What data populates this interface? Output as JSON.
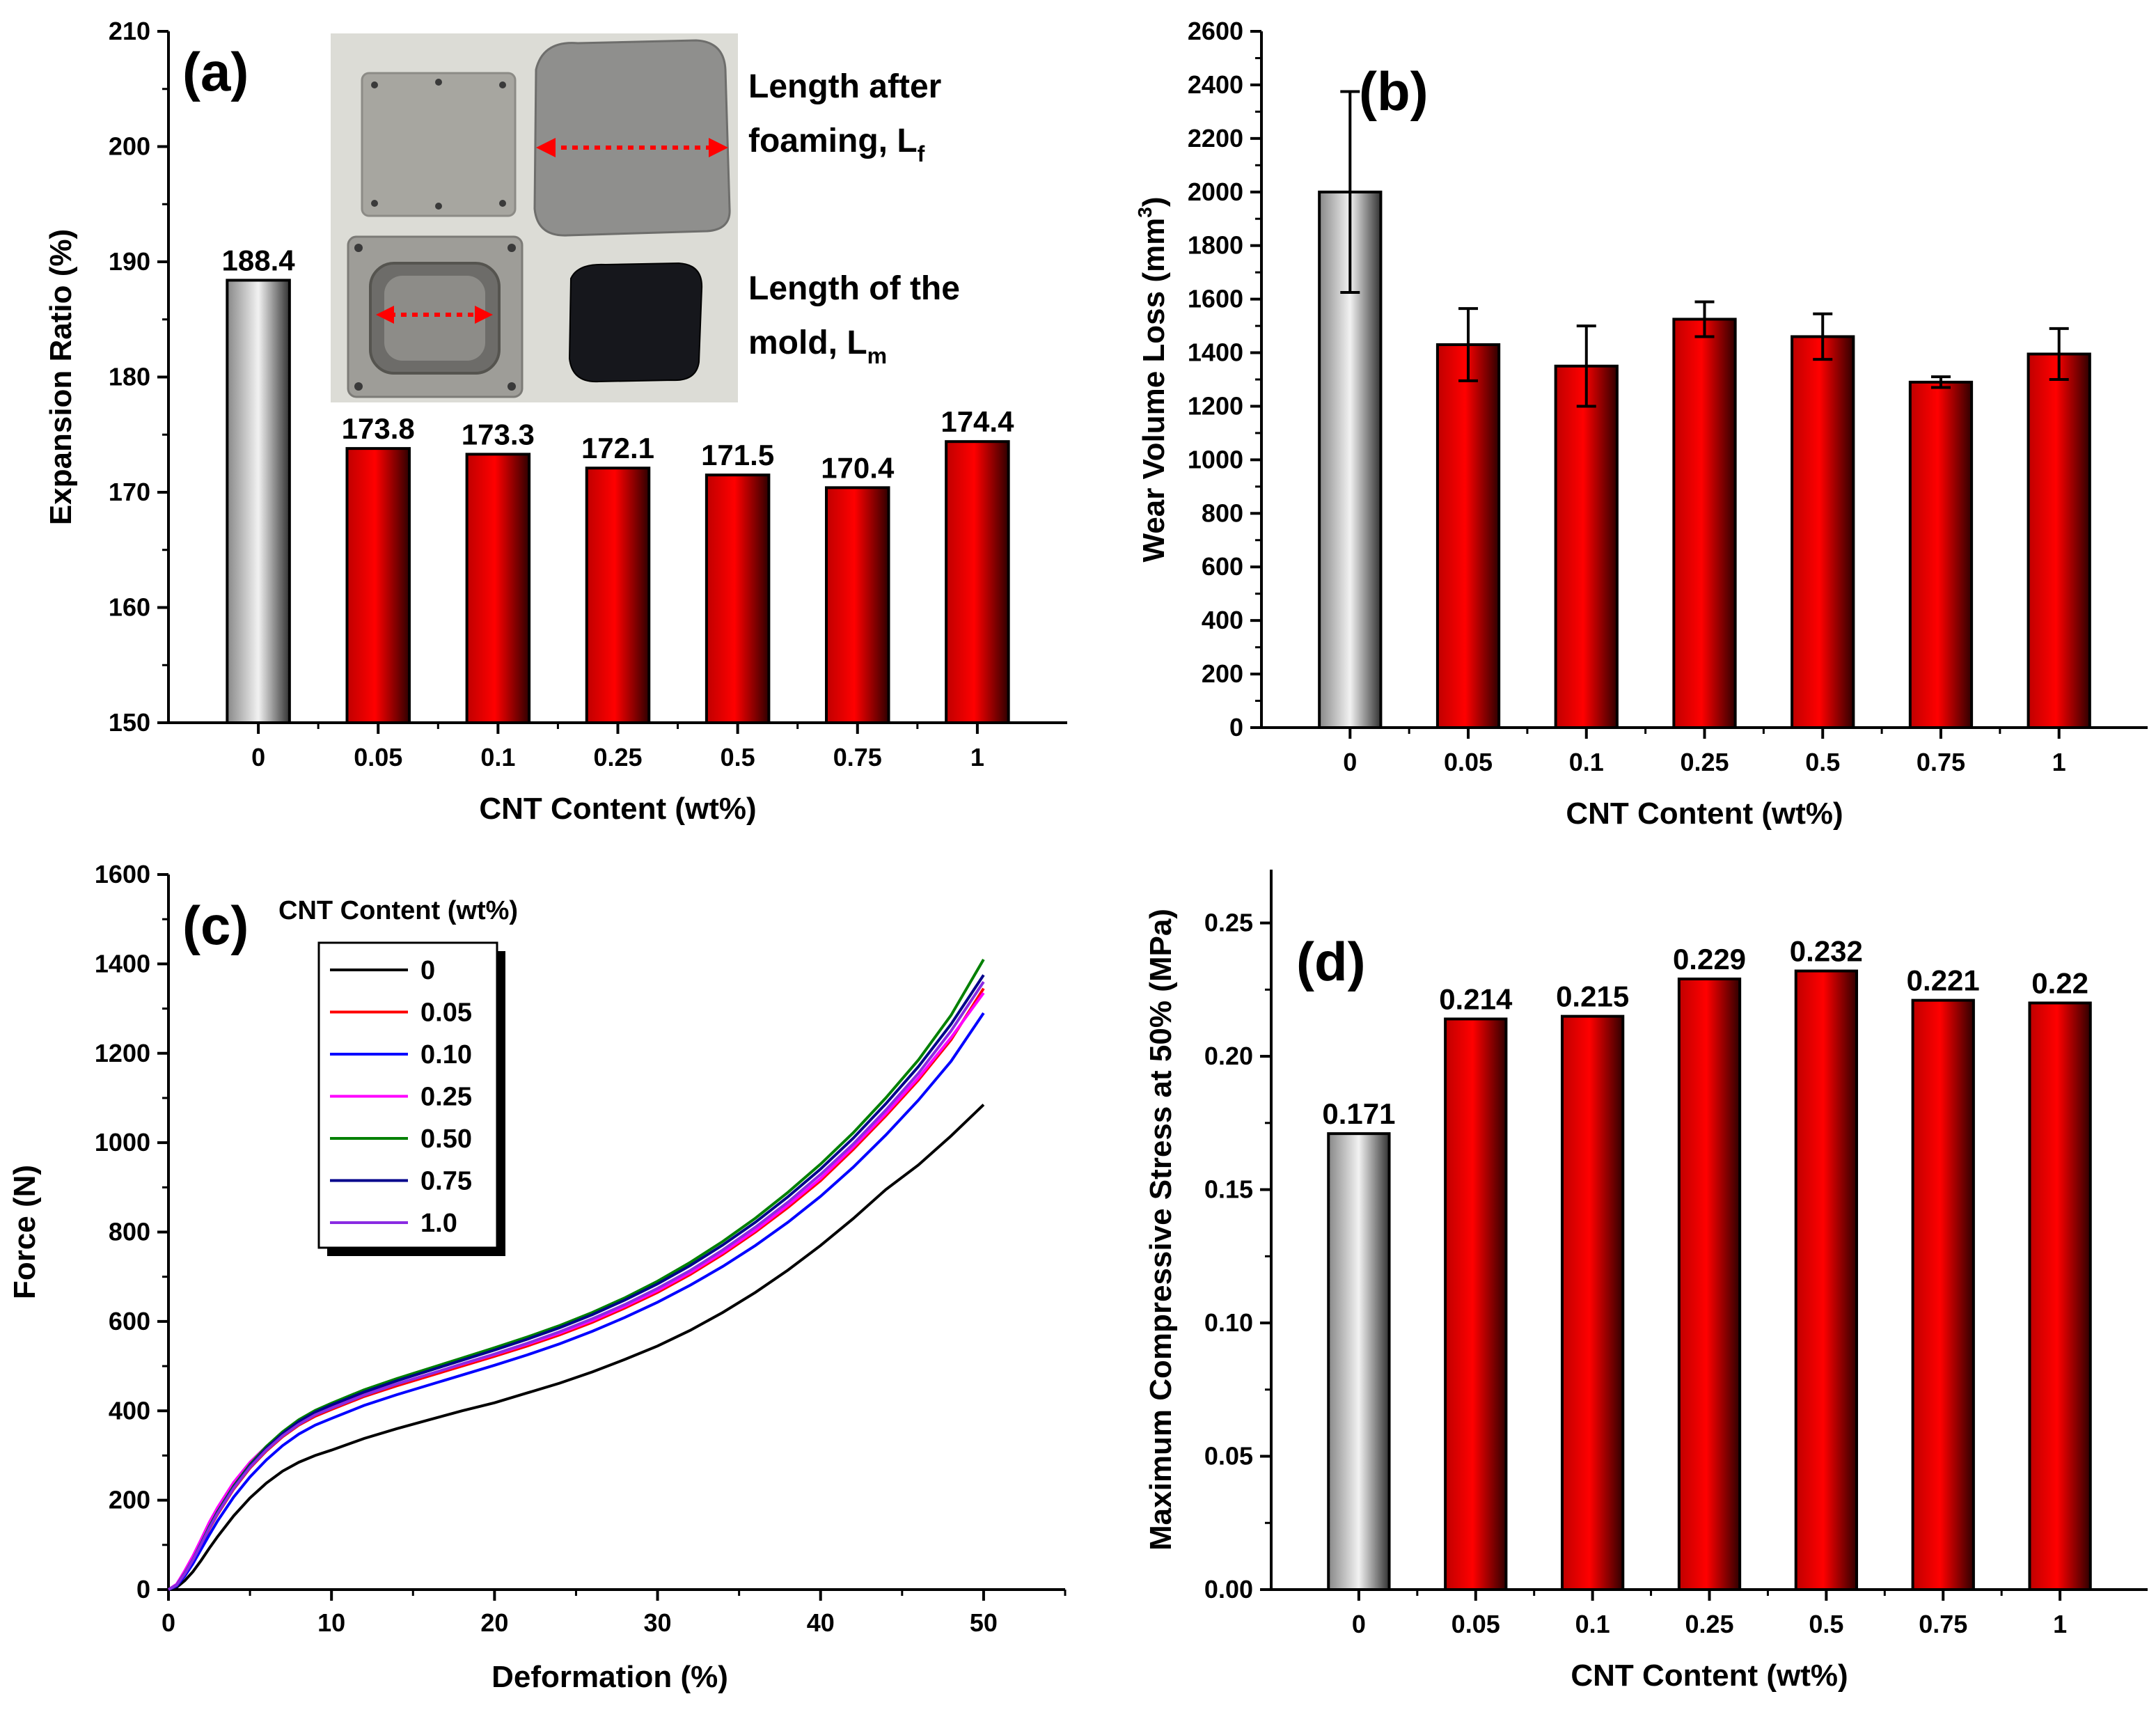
{
  "chart_data": [
    {
      "id": "a",
      "type": "bar",
      "panel_label": "(a)",
      "categories": [
        "0",
        "0.05",
        "0.1",
        "0.25",
        "0.5",
        "0.75",
        "1"
      ],
      "values": [
        188.4,
        173.8,
        173.3,
        172.1,
        171.5,
        170.4,
        174.4
      ],
      "value_labels": [
        "188.4",
        "173.8",
        "173.3",
        "172.1",
        "171.5",
        "170.4",
        "174.4"
      ],
      "xlabel": "CNT Content (wt%)",
      "ylabel": "Expansion Ratio (%)",
      "ylim": [
        150,
        210
      ],
      "yticks": [
        150,
        160,
        170,
        180,
        190,
        200,
        210
      ],
      "bar_colors": [
        "gray",
        "red",
        "red",
        "red",
        "red",
        "red",
        "red"
      ],
      "inset": {
        "description_photo": true,
        "caption_top_line1": "Length after",
        "caption_top_line2": "foaming, L",
        "caption_top_sub": "f",
        "caption_bottom_line1": "Length of the",
        "caption_bottom_line2": "mold, L",
        "caption_bottom_sub": "m"
      }
    },
    {
      "id": "b",
      "type": "bar",
      "panel_label": "(b)",
      "categories": [
        "0",
        "0.05",
        "0.1",
        "0.25",
        "0.5",
        "0.75",
        "1"
      ],
      "values": [
        2000,
        1430,
        1350,
        1525,
        1460,
        1290,
        1395
      ],
      "errors": [
        375,
        135,
        150,
        65,
        85,
        20,
        95
      ],
      "xlabel": "CNT Content (wt%)",
      "ylabel": "Wear Volume Loss (mm",
      "ylabel_sup": "3",
      "ylabel_end": ")",
      "ylim": [
        0,
        2600
      ],
      "yticks": [
        0,
        200,
        400,
        600,
        800,
        1000,
        1200,
        1400,
        1600,
        1800,
        2000,
        2200,
        2400,
        2600
      ],
      "bar_colors": [
        "gray",
        "red",
        "red",
        "red",
        "red",
        "red",
        "red"
      ]
    },
    {
      "id": "c",
      "type": "line",
      "panel_label": "(c)",
      "xlabel": "Deformation (%)",
      "ylabel": "Force (N)",
      "xlim": [
        0,
        55
      ],
      "ylim": [
        0,
        1600
      ],
      "xticks": [
        0,
        10,
        20,
        30,
        40,
        50
      ],
      "yticks": [
        0,
        200,
        400,
        600,
        800,
        1000,
        1200,
        1400,
        1600
      ],
      "legend_title": "CNT Content (wt%)",
      "x": [
        0,
        0.5,
        1,
        1.5,
        2,
        2.5,
        3,
        4,
        5,
        6,
        7,
        8,
        9,
        10,
        12,
        14,
        16,
        18,
        20,
        22,
        24,
        26,
        28,
        30,
        32,
        34,
        36,
        38,
        40,
        42,
        44,
        46,
        48,
        50
      ],
      "series": [
        {
          "name": "0",
          "color": "#000000",
          "values": [
            0,
            5,
            20,
            40,
            65,
            92,
            118,
            165,
            205,
            238,
            265,
            285,
            300,
            312,
            338,
            360,
            380,
            400,
            418,
            440,
            462,
            487,
            515,
            545,
            580,
            620,
            665,
            715,
            770,
            830,
            895,
            950,
            1015,
            1085
          ]
        },
        {
          "name": "0.05",
          "color": "#ff0000",
          "values": [
            0,
            10,
            35,
            65,
            100,
            135,
            168,
            225,
            272,
            310,
            342,
            368,
            388,
            403,
            432,
            456,
            478,
            500,
            522,
            545,
            570,
            598,
            630,
            665,
            705,
            750,
            800,
            855,
            915,
            985,
            1060,
            1140,
            1230,
            1345
          ]
        },
        {
          "name": "0.10",
          "color": "#0000ff",
          "values": [
            0,
            8,
            30,
            58,
            90,
            122,
            153,
            207,
            252,
            290,
            322,
            348,
            368,
            383,
            412,
            436,
            458,
            480,
            502,
            525,
            550,
            578,
            609,
            643,
            681,
            723,
            770,
            822,
            880,
            945,
            1017,
            1095,
            1182,
            1290
          ]
        },
        {
          "name": "0.25",
          "color": "#ff00ff",
          "values": [
            0,
            12,
            42,
            75,
            112,
            150,
            183,
            240,
            285,
            320,
            350,
            374,
            393,
            408,
            436,
            460,
            482,
            504,
            526,
            549,
            574,
            602,
            634,
            669,
            709,
            754,
            804,
            860,
            920,
            990,
            1065,
            1145,
            1235,
            1335
          ]
        },
        {
          "name": "0.50",
          "color": "#008000",
          "values": [
            0,
            10,
            36,
            67,
            103,
            140,
            174,
            232,
            280,
            320,
            353,
            380,
            401,
            417,
            447,
            472,
            495,
            518,
            541,
            565,
            591,
            620,
            653,
            690,
            732,
            779,
            831,
            889,
            952,
            1022,
            1100,
            1185,
            1285,
            1410
          ]
        },
        {
          "name": "0.75",
          "color": "#00008b",
          "values": [
            0,
            10,
            35,
            66,
            102,
            138,
            172,
            229,
            277,
            316,
            349,
            376,
            397,
            413,
            442,
            467,
            490,
            513,
            536,
            560,
            586,
            615,
            648,
            684,
            725,
            771,
            822,
            879,
            941,
            1010,
            1087,
            1170,
            1265,
            1375
          ]
        },
        {
          "name": "1.0",
          "color": "#8a2be2",
          "values": [
            0,
            10,
            35,
            66,
            101,
            137,
            170,
            227,
            274,
            312,
            344,
            370,
            391,
            406,
            435,
            460,
            482,
            505,
            527,
            551,
            577,
            606,
            638,
            674,
            714,
            760,
            811,
            867,
            929,
            997,
            1073,
            1155,
            1250,
            1360
          ]
        }
      ]
    },
    {
      "id": "d",
      "type": "bar",
      "panel_label": "(d)",
      "categories": [
        "0",
        "0.05",
        "0.1",
        "0.25",
        "0.5",
        "0.75",
        "1"
      ],
      "values": [
        0.171,
        0.214,
        0.215,
        0.229,
        0.232,
        0.221,
        0.22
      ],
      "value_labels": [
        "0.171",
        "0.214",
        "0.215",
        "0.229",
        "0.232",
        "0.221",
        "0.22"
      ],
      "xlabel": "CNT Content (wt%)",
      "ylabel": "Maximum Compressive Stress at 50% (MPa)",
      "ylim": [
        0,
        0.27
      ],
      "yticks": [
        0.0,
        0.05,
        0.1,
        0.15,
        0.2,
        0.25
      ],
      "ytick_labels": [
        "0.00",
        "0.05",
        "0.10",
        "0.15",
        "0.20",
        "0.25"
      ],
      "bar_colors": [
        "gray",
        "red",
        "red",
        "red",
        "red",
        "red",
        "red"
      ]
    }
  ]
}
